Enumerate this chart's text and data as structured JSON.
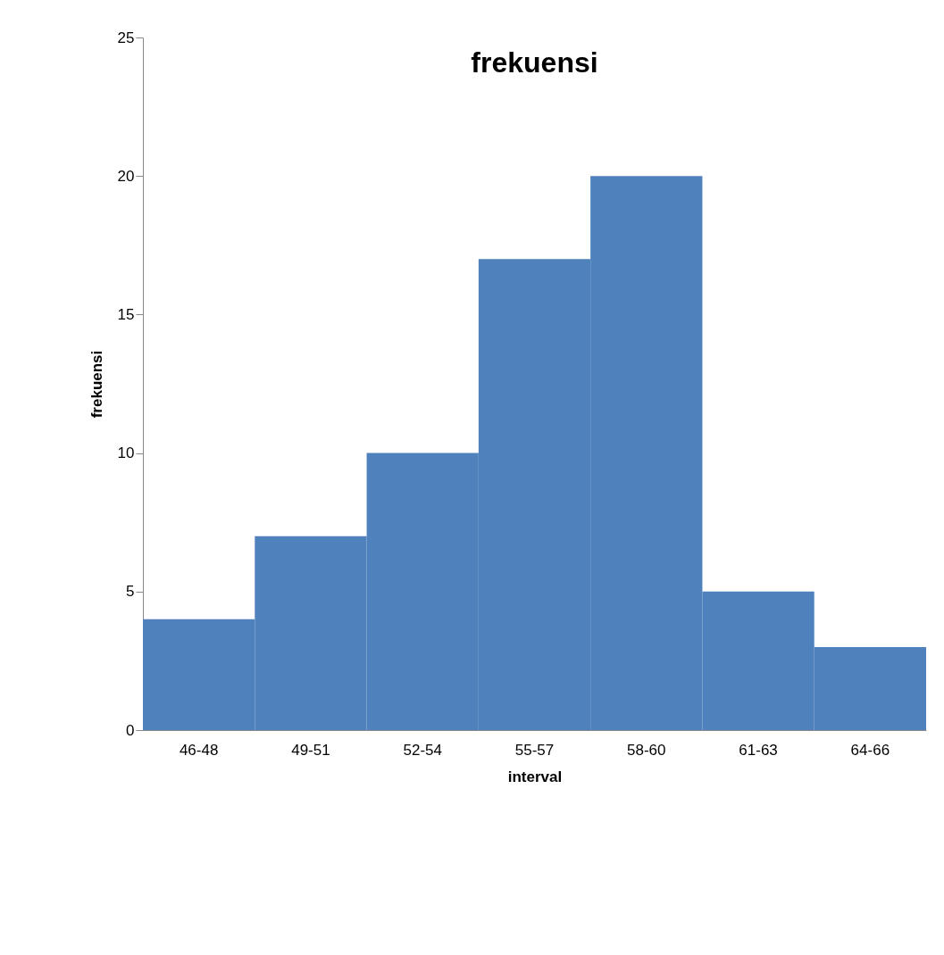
{
  "chart_data": {
    "type": "bar",
    "title": "frekuensi",
    "xlabel": "interval",
    "ylabel": "frekuensi",
    "categories": [
      "46-48",
      "49-51",
      "52-54",
      "55-57",
      "58-60",
      "61-63",
      "64-66"
    ],
    "values": [
      4,
      7,
      10,
      17,
      20,
      5,
      3
    ],
    "color": "#4f81bd",
    "ylim": [
      0,
      25
    ],
    "yticks": [
      0,
      5,
      10,
      15,
      20,
      25
    ]
  }
}
